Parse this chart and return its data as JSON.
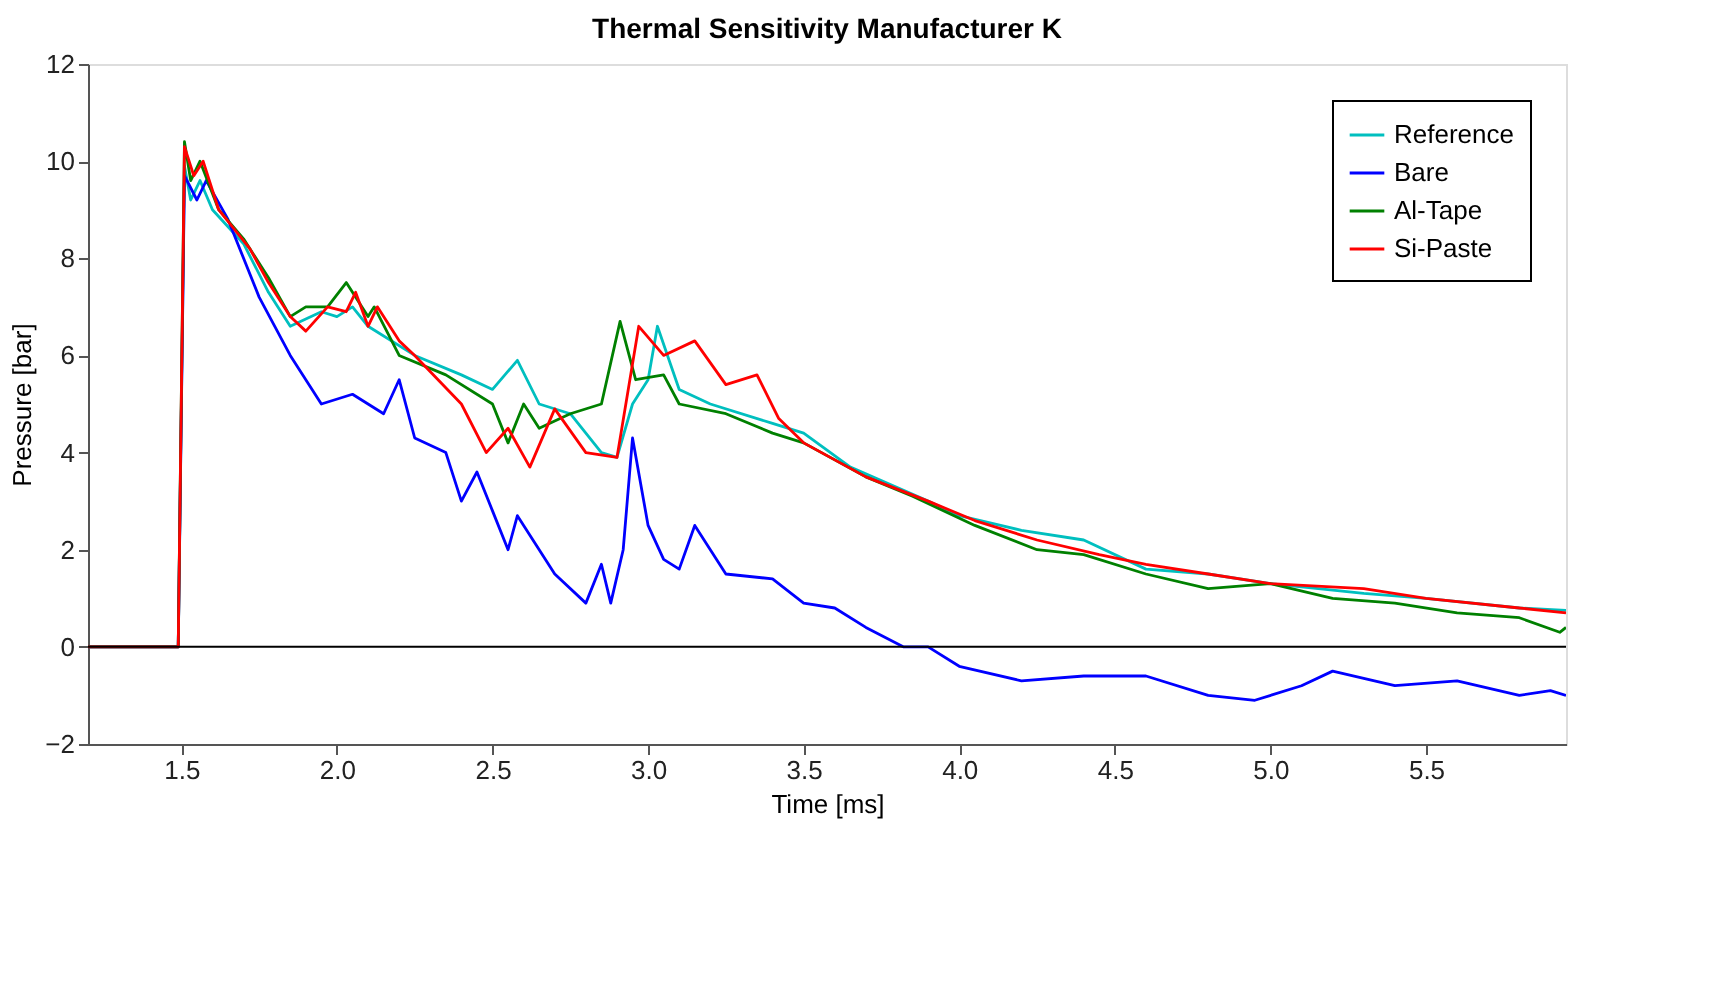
{
  "chart_data": {
    "type": "line",
    "title": "Thermal Sensitivity Manufacturer K",
    "xlabel": "Time [ms]",
    "ylabel": "Pressure [bar]",
    "xlim": [
      1.2,
      5.95
    ],
    "ylim": [
      -2,
      12
    ],
    "xticks": [
      1.5,
      {
        "value": 2,
        "label": "2.0"
      },
      2.5,
      {
        "value": 3,
        "label": "3.0"
      },
      3.5,
      {
        "value": 4,
        "label": "4.0"
      },
      4.5,
      {
        "value": 5,
        "label": "5.0"
      },
      5.5
    ],
    "yticks": [
      {
        "value": -2,
        "label": "−2"
      },
      0,
      2,
      4,
      6,
      8,
      10,
      12
    ],
    "grid": false,
    "legend": "top right",
    "marker": "none",
    "line_style": "solid",
    "ref_lines": [
      {
        "axis": "y",
        "value": 0,
        "color": "#000000"
      }
    ],
    "series": [
      {
        "name": "Reference",
        "color": "#00bfbf",
        "x": [
          1.2,
          1.49,
          1.51,
          1.53,
          1.56,
          1.6,
          1.7,
          1.78,
          1.85,
          1.95,
          2.0,
          2.05,
          2.1,
          2.25,
          2.4,
          2.5,
          2.58,
          2.65,
          2.75,
          2.85,
          2.9,
          2.95,
          3.0,
          3.03,
          3.1,
          3.2,
          3.4,
          3.5,
          3.65,
          3.9,
          4.0,
          4.2,
          4.4,
          4.6,
          4.8,
          5.0,
          5.3,
          5.5,
          5.8,
          5.95
        ],
        "values": [
          0,
          0,
          9.9,
          9.2,
          9.6,
          9.0,
          8.3,
          7.3,
          6.6,
          6.9,
          6.8,
          7.0,
          6.6,
          6.0,
          5.6,
          5.3,
          5.9,
          5.0,
          4.8,
          4.0,
          3.9,
          5.0,
          5.5,
          6.6,
          5.3,
          5.0,
          4.6,
          4.4,
          3.7,
          3.0,
          2.7,
          2.4,
          2.2,
          1.6,
          1.5,
          1.3,
          1.1,
          1.0,
          0.8,
          0.75
        ]
      },
      {
        "name": "Bare",
        "color": "#0000ff",
        "x": [
          1.2,
          1.49,
          1.51,
          1.55,
          1.58,
          1.65,
          1.75,
          1.85,
          1.95,
          2.05,
          2.15,
          2.2,
          2.25,
          2.35,
          2.4,
          2.45,
          2.5,
          2.55,
          2.58,
          2.7,
          2.8,
          2.85,
          2.88,
          2.92,
          2.95,
          3.0,
          3.05,
          3.1,
          3.15,
          3.25,
          3.4,
          3.5,
          3.6,
          3.7,
          3.82,
          3.9,
          4.0,
          4.2,
          4.4,
          4.6,
          4.8,
          4.95,
          5.1,
          5.2,
          5.4,
          5.6,
          5.8,
          5.9,
          5.95
        ],
        "values": [
          0,
          0,
          9.7,
          9.2,
          9.6,
          8.8,
          7.2,
          6.0,
          5.0,
          5.2,
          4.8,
          5.5,
          4.3,
          4.0,
          3.0,
          3.6,
          2.8,
          2.0,
          2.7,
          1.5,
          0.9,
          1.7,
          0.9,
          2.0,
          4.3,
          2.5,
          1.8,
          1.6,
          2.5,
          1.5,
          1.4,
          0.9,
          0.8,
          0.4,
          0.0,
          0.0,
          -0.4,
          -0.7,
          -0.6,
          -0.6,
          -1.0,
          -1.1,
          -0.8,
          -0.5,
          -0.8,
          -0.7,
          -1.0,
          -0.9,
          -1.0
        ]
      },
      {
        "name": "Al-Tape",
        "color": "#008000",
        "x": [
          1.2,
          1.49,
          1.51,
          1.53,
          1.56,
          1.62,
          1.7,
          1.78,
          1.85,
          1.9,
          1.97,
          2.03,
          2.1,
          2.12,
          2.2,
          2.35,
          2.5,
          2.55,
          2.6,
          2.65,
          2.75,
          2.85,
          2.91,
          2.96,
          3.05,
          3.1,
          3.25,
          3.4,
          3.5,
          3.7,
          3.85,
          4.05,
          4.25,
          4.4,
          4.6,
          4.8,
          5.0,
          5.2,
          5.4,
          5.6,
          5.8,
          5.93,
          5.95
        ],
        "values": [
          0,
          0,
          10.4,
          9.6,
          10.0,
          9.0,
          8.4,
          7.6,
          6.8,
          7.0,
          7.0,
          7.5,
          6.8,
          7.0,
          6.0,
          5.6,
          5.0,
          4.2,
          5.0,
          4.5,
          4.8,
          5.0,
          6.7,
          5.5,
          5.6,
          5.0,
          4.8,
          4.4,
          4.2,
          3.5,
          3.1,
          2.5,
          2.0,
          1.9,
          1.5,
          1.2,
          1.3,
          1.0,
          0.9,
          0.7,
          0.6,
          0.3,
          0.4
        ]
      },
      {
        "name": "Si-Paste",
        "color": "#ff0000",
        "x": [
          1.2,
          1.49,
          1.51,
          1.54,
          1.57,
          1.62,
          1.72,
          1.78,
          1.85,
          1.9,
          1.97,
          2.03,
          2.06,
          2.1,
          2.13,
          2.2,
          2.25,
          2.4,
          2.48,
          2.55,
          2.62,
          2.7,
          2.8,
          2.9,
          2.97,
          3.05,
          3.15,
          3.25,
          3.35,
          3.42,
          3.5,
          3.7,
          3.9,
          4.05,
          4.25,
          4.45,
          4.6,
          4.8,
          5.0,
          5.3,
          5.5,
          5.8,
          5.95
        ],
        "values": [
          0,
          0,
          10.3,
          9.7,
          10.0,
          9.0,
          8.2,
          7.5,
          6.8,
          6.5,
          7.0,
          6.9,
          7.3,
          6.6,
          7.0,
          6.3,
          6.0,
          5.0,
          4.0,
          4.5,
          3.7,
          4.9,
          4.0,
          3.9,
          6.6,
          6.0,
          6.3,
          5.4,
          5.6,
          4.7,
          4.2,
          3.5,
          3.0,
          2.6,
          2.2,
          1.9,
          1.7,
          1.5,
          1.3,
          1.2,
          1.0,
          0.8,
          0.7
        ]
      }
    ]
  }
}
